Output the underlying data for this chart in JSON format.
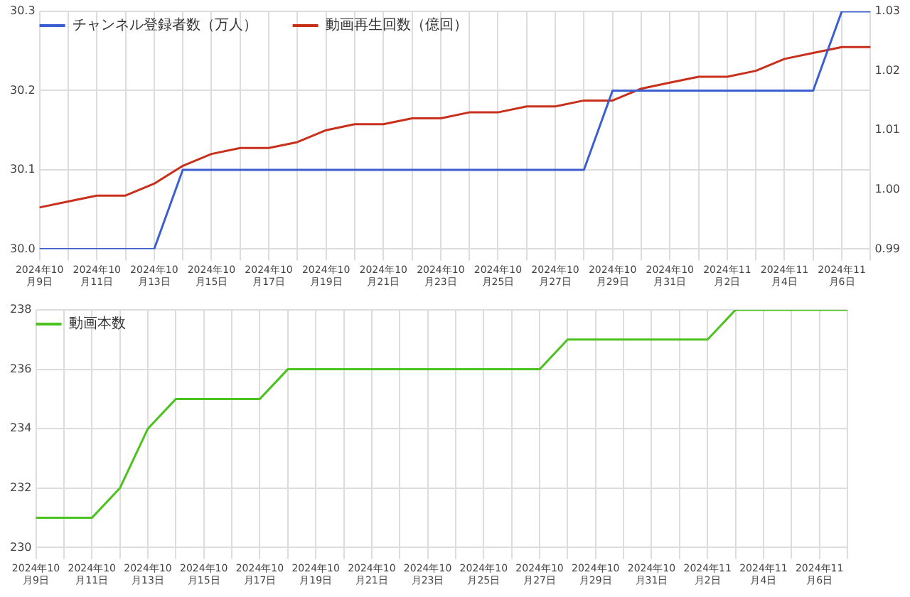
{
  "chart_data": [
    {
      "type": "line",
      "categories": [
        "2024年10月9日",
        null,
        "2024年10月11日",
        null,
        "2024年10月13日",
        null,
        "2024年10月15日",
        null,
        "2024年10月17日",
        null,
        "2024年10月19日",
        null,
        "2024年10月21日",
        null,
        "2024年10月23日",
        null,
        "2024年10月25日",
        null,
        "2024年10月27日",
        null,
        "2024年10月29日",
        null,
        "2024年10月31日",
        null,
        "2024年11月2日",
        null,
        "2024年11月4日",
        null,
        "2024年11月6日",
        null
      ],
      "series": [
        {
          "name": "チャンネル登録者数（万人）",
          "color": "#3b5fd0",
          "values": [
            30.0,
            30.0,
            30.0,
            30.0,
            30.0,
            30.1,
            30.1,
            30.1,
            30.1,
            30.1,
            30.1,
            30.1,
            30.1,
            30.1,
            30.1,
            30.1,
            30.1,
            30.1,
            30.1,
            30.1,
            30.2,
            30.2,
            30.2,
            30.2,
            30.2,
            30.2,
            30.2,
            30.2,
            30.3,
            30.3
          ]
        },
        {
          "name": "動画再生回数（億回）",
          "color": "#c9301c",
          "axis": "y2",
          "values": [
            0.997,
            0.998,
            0.999,
            0.999,
            1.001,
            1.004,
            1.006,
            1.007,
            1.007,
            1.008,
            1.01,
            1.011,
            1.011,
            1.012,
            1.012,
            1.013,
            1.013,
            1.014,
            1.014,
            1.015,
            1.015,
            1.017,
            1.018,
            1.019,
            1.019,
            1.02,
            1.022,
            1.023,
            1.024,
            1.024
          ]
        }
      ],
      "ylim": [
        30.0,
        30.3
      ],
      "yticks": [
        {
          "value": 30,
          "label": "30.0"
        },
        30.1,
        30.2,
        30.3
      ],
      "y2lim": [
        0.99,
        1.03
      ],
      "y2ticks": [
        0.99,
        {
          "value": 1,
          "label": "1.00"
        },
        1.01,
        1.02,
        1.03
      ],
      "grid": true,
      "legend": "top left",
      "marker": "none",
      "line_style": "solid"
    },
    {
      "type": "line",
      "categories": [
        "2024年10月9日",
        null,
        "2024年10月11日",
        null,
        "2024年10月13日",
        null,
        "2024年10月15日",
        null,
        "2024年10月17日",
        null,
        "2024年10月19日",
        null,
        "2024年10月21日",
        null,
        "2024年10月23日",
        null,
        "2024年10月25日",
        null,
        "2024年10月27日",
        null,
        "2024年10月29日",
        null,
        "2024年10月31日",
        null,
        "2024年11月2日",
        null,
        "2024年11月4日",
        null,
        "2024年11月6日",
        null
      ],
      "series": [
        {
          "name": "動画本数",
          "color": "#4cc21f",
          "values": [
            231,
            231,
            231,
            232,
            234,
            235,
            235,
            235,
            235,
            236,
            236,
            236,
            236,
            236,
            236,
            236,
            236,
            236,
            236,
            237,
            237,
            237,
            237,
            237,
            237,
            238,
            238,
            238,
            238,
            238
          ]
        }
      ],
      "ylim": [
        230,
        238
      ],
      "yticks": [
        230,
        232,
        234,
        236,
        238
      ],
      "grid": true,
      "legend": "top left",
      "marker": "none",
      "line_style": "solid"
    }
  ]
}
